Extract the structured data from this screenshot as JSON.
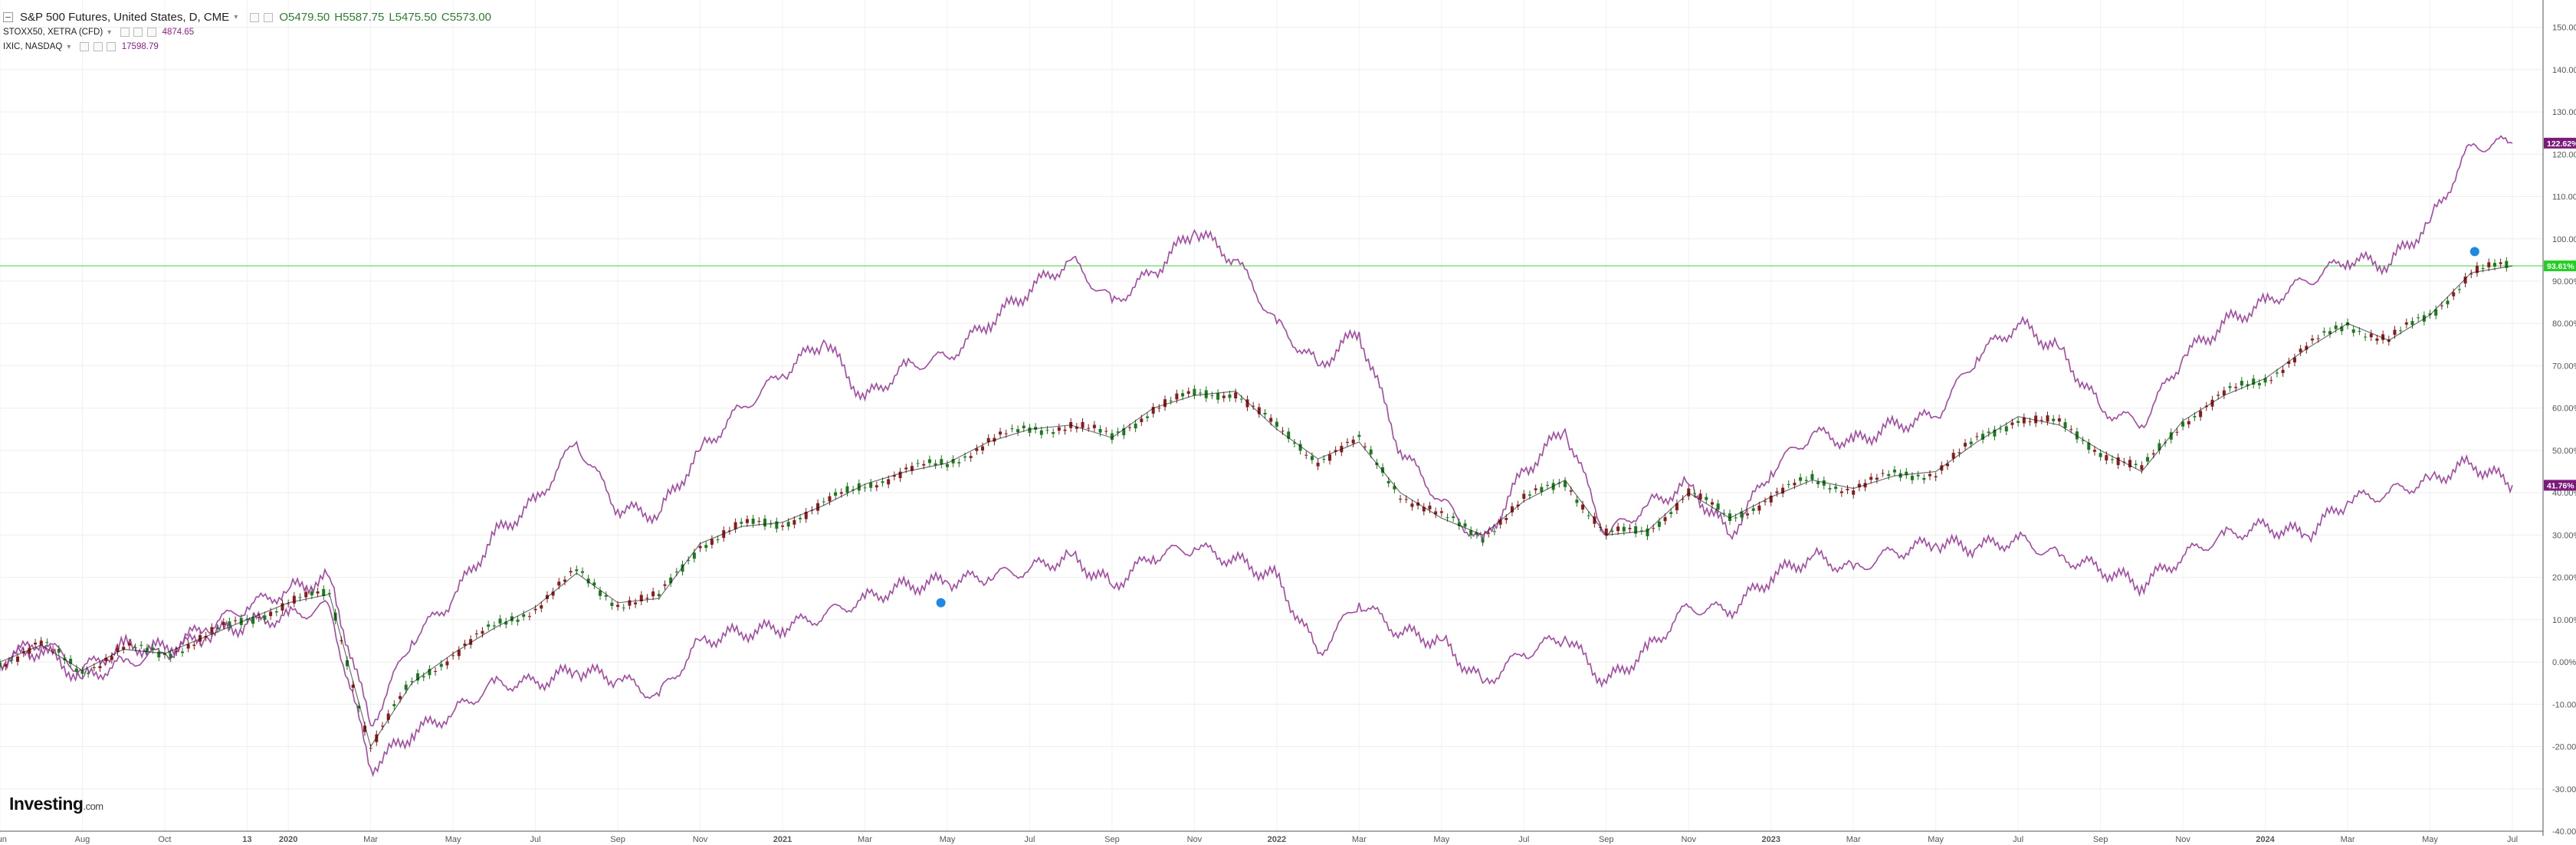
{
  "header": {
    "main_symbol": "S&P 500 Futures, United States, D, CME",
    "open": "O5479.50",
    "high": "H5587.75",
    "low": "L5475.50",
    "close": "C5573.00",
    "comparisons": [
      {
        "symbol": "STOXX50, XETRA (CFD)",
        "value": "4874.65"
      },
      {
        "symbol": "IXIC, NASDAQ",
        "value": "17598.79"
      }
    ]
  },
  "brand": {
    "name": "Investing",
    "suffix": ".com"
  },
  "colors": {
    "up_candle": "#1b7a1b",
    "down_candle": "#8b1a1a",
    "comparison_line": "#a349a4",
    "label_purple": "#7b1a7b",
    "label_green": "#22d022",
    "price_line": "#80e080"
  },
  "chart_data": {
    "type": "line",
    "scale": "percent",
    "x": [
      "2019-06",
      "2019-07",
      "2019-08",
      "2019-09",
      "2019-10",
      "2019-11",
      "2019-12",
      "2020-01",
      "2020-02",
      "2020-03",
      "2020-04",
      "2020-05",
      "2020-06",
      "2020-07",
      "2020-08",
      "2020-09",
      "2020-10",
      "2020-11",
      "2020-12",
      "2021-01",
      "2021-02",
      "2021-03",
      "2021-04",
      "2021-05",
      "2021-06",
      "2021-07",
      "2021-08",
      "2021-09",
      "2021-10",
      "2021-11",
      "2021-12",
      "2022-01",
      "2022-02",
      "2022-03",
      "2022-04",
      "2022-05",
      "2022-06",
      "2022-07",
      "2022-08",
      "2022-09",
      "2022-10",
      "2022-11",
      "2022-12",
      "2023-01",
      "2023-02",
      "2023-03",
      "2023-04",
      "2023-05",
      "2023-06",
      "2023-07",
      "2023-08",
      "2023-09",
      "2023-10",
      "2023-11",
      "2023-12",
      "2024-01",
      "2024-02",
      "2024-03",
      "2024-04",
      "2024-05",
      "2024-06",
      "2024-07"
    ],
    "x_tick_labels": [
      "Jun",
      "Aug",
      "Oct",
      "13",
      "2020",
      "Mar",
      "May",
      "Jul",
      "Sep",
      "Nov",
      "2021",
      "Mar",
      "May",
      "Jul",
      "Sep",
      "Nov",
      "2022",
      "Mar",
      "May",
      "Jul",
      "Sep",
      "Nov",
      "2023",
      "Mar",
      "May",
      "Jul",
      "Sep",
      "Nov",
      "2024",
      "Mar",
      "May",
      "Jul"
    ],
    "x_tick_dates": [
      "2019-06",
      "2019-08",
      "2019-10",
      "2019-12",
      "2020-01",
      "2020-03",
      "2020-05",
      "2020-07",
      "2020-09",
      "2020-11",
      "2021-01",
      "2021-03",
      "2021-05",
      "2021-07",
      "2021-09",
      "2021-11",
      "2022-01",
      "2022-03",
      "2022-05",
      "2022-07",
      "2022-09",
      "2022-11",
      "2023-01",
      "2023-03",
      "2023-05",
      "2023-07",
      "2023-09",
      "2023-11",
      "2024-01",
      "2024-03",
      "2024-05",
      "2024-07"
    ],
    "y_ticks": [
      "150.00%",
      "140.00%",
      "130.00%",
      "120.00%",
      "110.00%",
      "100.00%",
      "90.00%",
      "80.00%",
      "70.00%",
      "60.00%",
      "50.00%",
      "40.00%",
      "30.00%",
      "20.00%",
      "10.00%",
      "0.00%",
      "-10.00%",
      "-20.00%",
      "-30.00%",
      "-40.00%"
    ],
    "ylim": [
      -40,
      155
    ],
    "series": [
      {
        "name": "S&P 500 Futures",
        "style": "candlestick",
        "values": [
          0,
          4,
          -2,
          3,
          2,
          6,
          10,
          14,
          16,
          -20,
          -5,
          2,
          8,
          13,
          21,
          14,
          15,
          28,
          32,
          33,
          37,
          42,
          45,
          47,
          52,
          55,
          56,
          53,
          60,
          63,
          64,
          55,
          48,
          52,
          40,
          34,
          30,
          38,
          43,
          30,
          31,
          40,
          34,
          39,
          43,
          41,
          44,
          45,
          52,
          58,
          56,
          50,
          45,
          57,
          63,
          67,
          74,
          80,
          76,
          82,
          92,
          93.61
        ]
      },
      {
        "name": "IXIC, NASDAQ",
        "values": [
          0,
          5,
          -2,
          4,
          3,
          8,
          13,
          17,
          20,
          -15,
          5,
          15,
          30,
          38,
          52,
          36,
          35,
          50,
          60,
          68,
          76,
          62,
          70,
          72,
          80,
          88,
          95,
          85,
          92,
          102,
          95,
          80,
          70,
          78,
          50,
          38,
          28,
          45,
          55,
          30,
          37,
          42,
          30,
          45,
          54,
          52,
          56,
          58,
          72,
          80,
          74,
          60,
          56,
          72,
          80,
          85,
          90,
          95,
          94,
          104,
          122,
          122.62
        ]
      },
      {
        "name": "STOXX50, XETRA (CFD)",
        "values": [
          0,
          3,
          -4,
          0,
          2,
          6,
          9,
          11,
          13,
          -25,
          -17,
          -12,
          -5,
          -5,
          -2,
          -4,
          -8,
          5,
          7,
          8,
          11,
          15,
          18,
          19,
          20,
          22,
          25,
          18,
          25,
          27,
          24,
          20,
          2,
          14,
          7,
          5,
          -5,
          2,
          6,
          -5,
          3,
          13,
          12,
          20,
          25,
          22,
          26,
          28,
          27,
          29,
          25,
          22,
          18,
          25,
          30,
          32,
          30,
          38,
          40,
          43,
          47,
          41.76
        ]
      }
    ],
    "last_value_labels": [
      "122.62%",
      "93.61%",
      "41.76%"
    ],
    "horizontal_line": 93.61
  }
}
